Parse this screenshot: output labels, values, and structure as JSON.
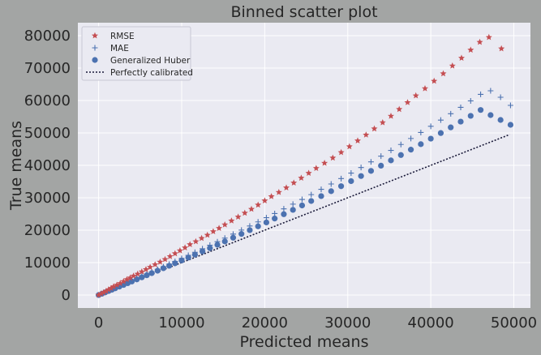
{
  "chart_data": {
    "type": "scatter",
    "title": "Binned scatter plot",
    "xlabel": "Predicted means",
    "ylabel": "True means",
    "xlim": [
      -2500,
      52000
    ],
    "ylim": [
      -4000,
      84000
    ],
    "xticks": [
      0,
      10000,
      20000,
      30000,
      40000,
      50000
    ],
    "xtick_labels": [
      "0",
      "10000",
      "20000",
      "30000",
      "40000",
      "50000"
    ],
    "yticks": [
      0,
      10000,
      20000,
      30000,
      40000,
      50000,
      60000,
      70000,
      80000
    ],
    "ytick_labels": [
      "0",
      "10000",
      "20000",
      "30000",
      "40000",
      "50000",
      "60000",
      "70000",
      "80000"
    ],
    "grid": true,
    "legend_position": "top-left",
    "colors": {
      "figure_bg": "#a3a5a4",
      "plot_bg": "#eaeaf2",
      "grid": "#ffffff",
      "rmse": "#c44e52",
      "mae": "#4c72b0",
      "huber": "#4c72b0",
      "calibrated": "#1b1b3a"
    },
    "series": [
      {
        "name": "RMSE",
        "marker": "star",
        "points": [
          [
            0,
            0
          ],
          [
            300,
            400
          ],
          [
            600,
            800
          ],
          [
            900,
            1200
          ],
          [
            1200,
            1700
          ],
          [
            1500,
            2100
          ],
          [
            1800,
            2600
          ],
          [
            2200,
            3100
          ],
          [
            2600,
            3600
          ],
          [
            3000,
            4200
          ],
          [
            3400,
            4800
          ],
          [
            3800,
            5300
          ],
          [
            4200,
            5900
          ],
          [
            4700,
            6500
          ],
          [
            5200,
            7200
          ],
          [
            5700,
            7900
          ],
          [
            6200,
            8600
          ],
          [
            6800,
            9400
          ],
          [
            7400,
            10200
          ],
          [
            8000,
            11000
          ],
          [
            8600,
            11900
          ],
          [
            9200,
            12800
          ],
          [
            9800,
            13700
          ],
          [
            10400,
            14600
          ],
          [
            11000,
            15600
          ],
          [
            11700,
            16500
          ],
          [
            12400,
            17500
          ],
          [
            13100,
            18500
          ],
          [
            13800,
            19600
          ],
          [
            14500,
            20600
          ],
          [
            15200,
            21700
          ],
          [
            16000,
            22900
          ],
          [
            16800,
            24100
          ],
          [
            17600,
            25300
          ],
          [
            18400,
            26500
          ],
          [
            19200,
            27800
          ],
          [
            20000,
            29100
          ],
          [
            20800,
            30400
          ],
          [
            21700,
            31700
          ],
          [
            22600,
            33100
          ],
          [
            23500,
            34600
          ],
          [
            24400,
            36100
          ],
          [
            25300,
            37600
          ],
          [
            26200,
            39100
          ],
          [
            27200,
            40700
          ],
          [
            28200,
            42300
          ],
          [
            29200,
            44000
          ],
          [
            30200,
            45800
          ],
          [
            31200,
            47600
          ],
          [
            32200,
            49400
          ],
          [
            33200,
            51300
          ],
          [
            34200,
            53200
          ],
          [
            35200,
            55200
          ],
          [
            36200,
            57300
          ],
          [
            37200,
            59400
          ],
          [
            38200,
            61500
          ],
          [
            39300,
            63700
          ],
          [
            40400,
            66000
          ],
          [
            41500,
            68300
          ],
          [
            42600,
            70700
          ],
          [
            43700,
            73100
          ],
          [
            44800,
            75600
          ],
          [
            45900,
            78000
          ],
          [
            47000,
            79500
          ],
          [
            48500,
            76000
          ]
        ]
      },
      {
        "name": "MAE",
        "marker": "plus",
        "points": [
          [
            0,
            0
          ],
          [
            400,
            420
          ],
          [
            800,
            850
          ],
          [
            1200,
            1280
          ],
          [
            1600,
            1720
          ],
          [
            2000,
            2160
          ],
          [
            2500,
            2710
          ],
          [
            3000,
            3260
          ],
          [
            3500,
            3820
          ],
          [
            4000,
            4380
          ],
          [
            4600,
            5060
          ],
          [
            5200,
            5740
          ],
          [
            5800,
            6420
          ],
          [
            6400,
            7110
          ],
          [
            7100,
            7910
          ],
          [
            7800,
            8720
          ],
          [
            8500,
            9530
          ],
          [
            9200,
            10350
          ],
          [
            10000,
            11290
          ],
          [
            10800,
            12240
          ],
          [
            11600,
            13190
          ],
          [
            12500,
            14270
          ],
          [
            13400,
            15360
          ],
          [
            14300,
            16450
          ],
          [
            15200,
            17560
          ],
          [
            16200,
            18790
          ],
          [
            17200,
            20030
          ],
          [
            18200,
            21290
          ],
          [
            19200,
            22560
          ],
          [
            20200,
            23850
          ],
          [
            21200,
            25140
          ],
          [
            22300,
            26580
          ],
          [
            23400,
            28030
          ],
          [
            24500,
            29490
          ],
          [
            25600,
            30970
          ],
          [
            26800,
            32600
          ],
          [
            28000,
            34250
          ],
          [
            29200,
            35920
          ],
          [
            30400,
            37620
          ],
          [
            31600,
            39330
          ],
          [
            32800,
            41070
          ],
          [
            34000,
            42840
          ],
          [
            35200,
            44620
          ],
          [
            36400,
            46440
          ],
          [
            37600,
            48280
          ],
          [
            38800,
            50140
          ],
          [
            40000,
            52040
          ],
          [
            41200,
            53960
          ],
          [
            42400,
            55910
          ],
          [
            43600,
            57880
          ],
          [
            44800,
            59880
          ],
          [
            46000,
            61900
          ],
          [
            47200,
            63000
          ],
          [
            48400,
            61000
          ],
          [
            49600,
            58500
          ]
        ]
      },
      {
        "name": "Generalized Huber",
        "marker": "circle",
        "points": [
          [
            0,
            0
          ],
          [
            400,
            410
          ],
          [
            800,
            820
          ],
          [
            1200,
            1240
          ],
          [
            1600,
            1650
          ],
          [
            2000,
            2070
          ],
          [
            2500,
            2600
          ],
          [
            3000,
            3120
          ],
          [
            3500,
            3650
          ],
          [
            4000,
            4180
          ],
          [
            4600,
            4820
          ],
          [
            5200,
            5460
          ],
          [
            5800,
            6100
          ],
          [
            6400,
            6750
          ],
          [
            7100,
            7500
          ],
          [
            7800,
            8260
          ],
          [
            8500,
            9020
          ],
          [
            9200,
            9790
          ],
          [
            10000,
            10670
          ],
          [
            10800,
            11560
          ],
          [
            11600,
            12450
          ],
          [
            12500,
            13460
          ],
          [
            13400,
            14470
          ],
          [
            14300,
            15500
          ],
          [
            15200,
            16530
          ],
          [
            16200,
            17680
          ],
          [
            17200,
            18840
          ],
          [
            18200,
            20010
          ],
          [
            19200,
            21190
          ],
          [
            20200,
            22390
          ],
          [
            21200,
            23590
          ],
          [
            22300,
            24930
          ],
          [
            23400,
            26270
          ],
          [
            24500,
            27630
          ],
          [
            25600,
            29000
          ],
          [
            26800,
            30510
          ],
          [
            28000,
            32030
          ],
          [
            29200,
            33570
          ],
          [
            30400,
            35130
          ],
          [
            31600,
            36700
          ],
          [
            32800,
            38290
          ],
          [
            34000,
            39900
          ],
          [
            35200,
            41530
          ],
          [
            36400,
            43180
          ],
          [
            37600,
            44840
          ],
          [
            38800,
            46530
          ],
          [
            40000,
            48240
          ],
          [
            41200,
            49960
          ],
          [
            42400,
            51710
          ],
          [
            43600,
            53480
          ],
          [
            44800,
            55270
          ],
          [
            46000,
            57080
          ],
          [
            47200,
            55500
          ],
          [
            48400,
            54000
          ],
          [
            49600,
            52500
          ]
        ]
      },
      {
        "name": "Perfectly calibrated",
        "marker": "dotted-line",
        "points": [
          [
            0,
            0
          ],
          [
            49500,
            49500
          ]
        ]
      }
    ]
  }
}
